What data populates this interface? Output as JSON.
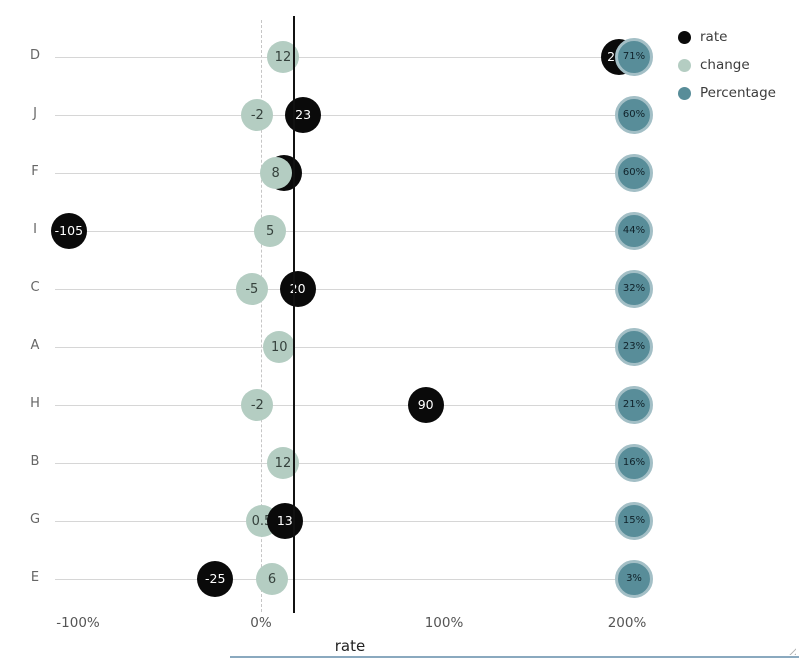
{
  "legend": {
    "items": [
      {
        "label": "rate",
        "color": "#0a0a0a"
      },
      {
        "label": "change",
        "color": "#b4cdc2"
      },
      {
        "label": "Percentage",
        "color": "#588d99"
      }
    ]
  },
  "chart_data": {
    "type": "scatter",
    "subtype": "horizontal-dot-plot",
    "categories": [
      "D",
      "J",
      "F",
      "I",
      "C",
      "A",
      "H",
      "B",
      "G",
      "E"
    ],
    "series": [
      {
        "name": "rate",
        "color": "#0a0a0a",
        "text_color": "#ffffff",
        "values": [
          200,
          23,
          null,
          -105,
          20,
          null,
          90,
          null,
          13,
          -25
        ],
        "hidden_behind_change": [
          false,
          false,
          true,
          false,
          false,
          false,
          false,
          false,
          false,
          false
        ]
      },
      {
        "name": "change",
        "color": "#b4cdc2",
        "text_color": "#35413c",
        "values": [
          12,
          -2,
          8,
          5,
          -5,
          10,
          -2,
          12,
          0.5,
          6
        ]
      },
      {
        "name": "Percentage",
        "color": "#588d99",
        "rim_color": "#a3bfc6",
        "text_color": "#10222a",
        "values": [
          71,
          60,
          60,
          44,
          32,
          23,
          21,
          16,
          15,
          3
        ],
        "labels": [
          "71%",
          "60%",
          "60%",
          "44%",
          "32%",
          "23%",
          "21%",
          "16%",
          "15%",
          "3%"
        ]
      }
    ],
    "x_axis": {
      "title": "rate",
      "ticks": [
        "-100%",
        "0%",
        "100%",
        "200%"
      ],
      "tick_values": [
        -100,
        0,
        100,
        200
      ],
      "range": [
        -112,
        215
      ]
    },
    "reference_lines": {
      "dashed_at_percent": 0,
      "solid_at_percent": 18
    },
    "grid": "horizontal",
    "legend_position": "top-right"
  }
}
